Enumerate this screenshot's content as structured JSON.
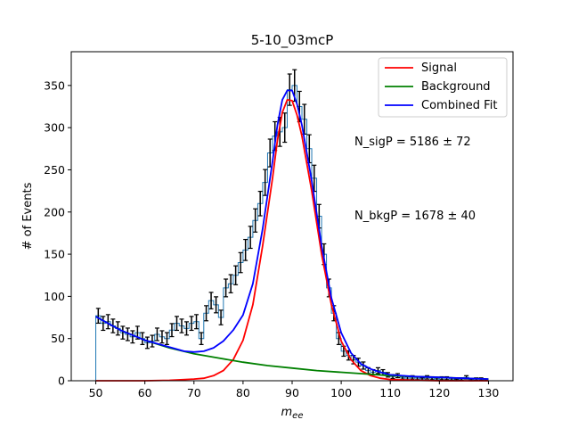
{
  "chart_data": {
    "type": "line",
    "title": "5-10_03mcP",
    "xlabel_main": "m",
    "xlabel_sub": "ee",
    "ylabel": "# of Events",
    "xlim": [
      45,
      135
    ],
    "ylim": [
      0,
      390
    ],
    "x_ticks": [
      50,
      60,
      70,
      80,
      90,
      100,
      110,
      120,
      130
    ],
    "y_ticks": [
      0,
      50,
      100,
      150,
      200,
      250,
      300,
      350
    ],
    "legend_position": "upper right",
    "colors": {
      "signal": "#ff0000",
      "background": "#008000",
      "combined": "#0000ff",
      "histogram": "#1f77b4",
      "errorbars": "#000000"
    },
    "legend": [
      {
        "label": "Signal",
        "color": "#ff0000"
      },
      {
        "label": "Background",
        "color": "#008000"
      },
      {
        "label": "Combined Fit",
        "color": "#0000ff"
      }
    ],
    "annotations": [
      "N_sigP = 5186 ± 72",
      "N_bkgP = 1678 ± 40"
    ],
    "histogram": {
      "bin_width": 1,
      "bin_starts": [
        50,
        51,
        52,
        53,
        54,
        55,
        56,
        57,
        58,
        59,
        60,
        61,
        62,
        63,
        64,
        65,
        66,
        67,
        68,
        69,
        70,
        71,
        72,
        73,
        74,
        75,
        76,
        77,
        78,
        79,
        80,
        81,
        82,
        83,
        84,
        85,
        86,
        87,
        88,
        89,
        90,
        91,
        92,
        93,
        94,
        95,
        96,
        97,
        98,
        99,
        100,
        101,
        102,
        103,
        104,
        105,
        106,
        107,
        108,
        109,
        110,
        111,
        112,
        113,
        114,
        115,
        116,
        117,
        118,
        119,
        120,
        121,
        122,
        123,
        124,
        125,
        126,
        127,
        128,
        129
      ],
      "counts": [
        77,
        68,
        70,
        65,
        62,
        57,
        55,
        52,
        57,
        50,
        45,
        47,
        55,
        52,
        50,
        60,
        68,
        65,
        62,
        68,
        70,
        50,
        80,
        95,
        90,
        75,
        110,
        115,
        125,
        140,
        155,
        170,
        190,
        210,
        235,
        270,
        290,
        295,
        300,
        345,
        350,
        325,
        310,
        275,
        240,
        195,
        150,
        110,
        80,
        50,
        35,
        30,
        25,
        22,
        18,
        12,
        10,
        12,
        10,
        7,
        5,
        6,
        4,
        3,
        4,
        3,
        2,
        4,
        3,
        2,
        3,
        3,
        2,
        1,
        2,
        4,
        1,
        2,
        2,
        1
      ]
    },
    "series": [
      {
        "name": "Signal",
        "x": [
          50,
          55,
          60,
          65,
          70,
          72,
          74,
          76,
          78,
          80,
          82,
          84,
          86,
          87,
          88,
          89,
          90,
          91,
          92,
          94,
          96,
          98,
          100,
          102,
          104,
          106,
          108,
          110,
          115,
          120,
          125,
          130
        ],
        "y": [
          0,
          0,
          0,
          0.5,
          2,
          3,
          6,
          12,
          25,
          48,
          90,
          160,
          240,
          285,
          318,
          333,
          332,
          315,
          290,
          225,
          150,
          90,
          47,
          25,
          12,
          6,
          3,
          1.5,
          0.5,
          0,
          0,
          0
        ]
      },
      {
        "name": "Background",
        "x": [
          50,
          55,
          60,
          65,
          70,
          75,
          80,
          85,
          90,
          95,
          100,
          105,
          110,
          115,
          120,
          125,
          130
        ],
        "y": [
          76,
          60,
          48,
          39,
          32,
          27,
          22,
          18,
          15,
          12,
          10,
          8,
          6,
          5,
          4,
          3,
          2
        ]
      },
      {
        "name": "Combined Fit",
        "x": [
          50,
          55,
          60,
          65,
          68,
          70,
          72,
          74,
          76,
          78,
          80,
          82,
          84,
          86,
          87,
          88,
          89,
          90,
          91,
          92,
          94,
          96,
          98,
          100,
          102,
          104,
          106,
          108,
          110,
          115,
          120,
          125,
          130
        ],
        "y": [
          76,
          60,
          48,
          40,
          35,
          34,
          35,
          39,
          47,
          60,
          78,
          115,
          180,
          260,
          303,
          333,
          344,
          344,
          328,
          303,
          237,
          160,
          98,
          57,
          33,
          20,
          14,
          10,
          7,
          5,
          4,
          3,
          2
        ]
      }
    ]
  }
}
